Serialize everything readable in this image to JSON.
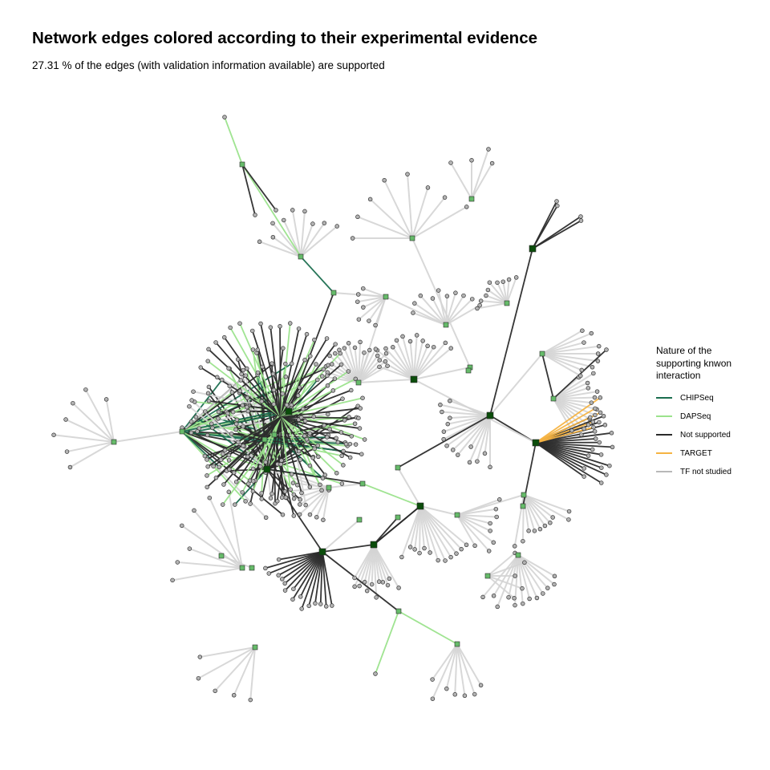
{
  "header": {
    "title": "Network edges colored according to their experimental evidence",
    "subtitle": "27.31 % of the edges (with validation information available) are supported"
  },
  "legend": {
    "title": "Nature of the supporting knwon interaction",
    "items": [
      {
        "label": "CHIPSeq",
        "color": "#1b6e4f"
      },
      {
        "label": "DAPSeq",
        "color": "#9be38c"
      },
      {
        "label": "Not supported",
        "color": "#2b2b2b"
      },
      {
        "label": "TARGET",
        "color": "#f5b342"
      },
      {
        "label": "TF not studied",
        "color": "#b8b8b8"
      }
    ]
  },
  "node_styles": {
    "target_fill": "#b3b3b3",
    "tf_fill": "#66bb6a",
    "hub_fill": "#0b4d0b"
  }
}
